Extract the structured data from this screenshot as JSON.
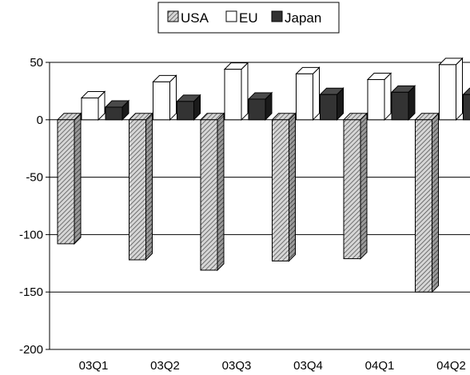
{
  "chart_data": {
    "type": "bar",
    "title": "",
    "xlabel": "",
    "ylabel": "",
    "categories": [
      "03Q1",
      "03Q2",
      "03Q3",
      "03Q4",
      "04Q1",
      "04Q2"
    ],
    "series": [
      {
        "name": "USA",
        "values": [
          -108,
          -122,
          -131,
          -123,
          -121,
          -150
        ],
        "color": "#a8a8a8",
        "pattern": "diagonal-hatch"
      },
      {
        "name": "EU",
        "values": [
          19,
          33,
          44,
          40,
          35,
          48
        ],
        "color": "#ffffff"
      },
      {
        "name": "Japan",
        "values": [
          11,
          16,
          18,
          22,
          24,
          22
        ],
        "color": "#333333"
      }
    ],
    "ylim": [
      -200,
      50
    ],
    "yticks": [
      50,
      0,
      -50,
      -100,
      -150,
      -200
    ],
    "grid": true,
    "legend_position": "top"
  }
}
